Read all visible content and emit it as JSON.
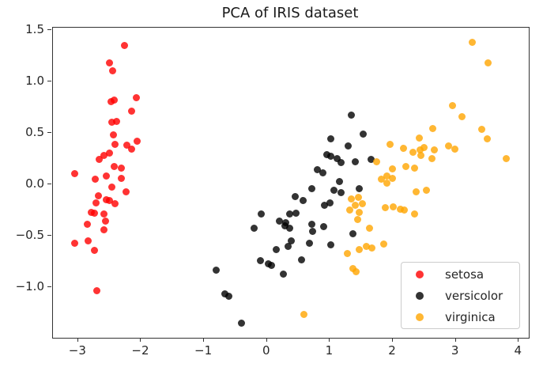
{
  "title": "PCA of IRIS dataset",
  "legend": {
    "position": "lower right",
    "items": [
      {
        "label": "setosa",
        "color": "rgba(255,0,0,0.8)"
      },
      {
        "label": "versicolor",
        "color": "rgba(0,0,0,0.8)"
      },
      {
        "label": "virginica",
        "color": "rgba(255,165,0,0.8)"
      }
    ]
  },
  "chart_data": {
    "type": "scatter",
    "title": "PCA of IRIS dataset",
    "xlabel": "",
    "ylabel": "",
    "grid": false,
    "legend_position": "lower right",
    "xlim": [
      -3.4,
      4.16
    ],
    "ylim": [
      -1.49,
      1.52
    ],
    "xticks": [
      -3,
      -2,
      -1,
      0,
      1,
      2,
      3,
      4
    ],
    "xtick_labels": [
      "−3",
      "−2",
      "−1",
      "0",
      "1",
      "2",
      "3",
      "4"
    ],
    "yticks": [
      1.5,
      1.0,
      0.5,
      0.0,
      -0.5,
      -1.0
    ],
    "ytick_labels": [
      "1.5",
      "1.0",
      "0.5",
      "0.0",
      "−0.5",
      "−1.0"
    ],
    "marker_alpha": 0.8,
    "marker_size_px": 9,
    "series": [
      {
        "name": "setosa",
        "color": "rgba(255,0,0,0.8)",
        "points": [
          [
            -2.26,
            1.35
          ],
          [
            -2.5,
            1.18
          ],
          [
            -2.45,
            1.1
          ],
          [
            -2.48,
            0.8
          ],
          [
            -2.43,
            0.82
          ],
          [
            -2.07,
            0.84
          ],
          [
            -2.15,
            0.71
          ],
          [
            -2.47,
            0.6
          ],
          [
            -2.39,
            0.61
          ],
          [
            -2.44,
            0.48
          ],
          [
            -2.41,
            0.39
          ],
          [
            -2.22,
            0.38
          ],
          [
            -2.06,
            0.42
          ],
          [
            -2.15,
            0.34
          ],
          [
            -2.59,
            0.28
          ],
          [
            -2.5,
            0.3
          ],
          [
            -2.66,
            0.24
          ],
          [
            -2.43,
            0.17
          ],
          [
            -2.31,
            0.16
          ],
          [
            -3.06,
            0.1
          ],
          [
            -2.73,
            0.05
          ],
          [
            -2.55,
            0.08
          ],
          [
            -2.32,
            0.06
          ],
          [
            -2.47,
            -0.03
          ],
          [
            -2.24,
            -0.07
          ],
          [
            -2.68,
            -0.11
          ],
          [
            -2.55,
            -0.15
          ],
          [
            -2.5,
            -0.16
          ],
          [
            -2.71,
            -0.18
          ],
          [
            -2.42,
            -0.19
          ],
          [
            -2.79,
            -0.27
          ],
          [
            -2.74,
            -0.28
          ],
          [
            -2.59,
            -0.29
          ],
          [
            -2.57,
            -0.36
          ],
          [
            -2.85,
            -0.39
          ],
          [
            -2.59,
            -0.44
          ],
          [
            -3.06,
            -0.57
          ],
          [
            -2.84,
            -0.55
          ],
          [
            -2.74,
            -0.64
          ],
          [
            -2.7,
            -1.03
          ]
        ]
      },
      {
        "name": "versicolor",
        "color": "rgba(0,0,0,0.8)",
        "points": [
          [
            1.34,
            0.67
          ],
          [
            1.53,
            0.49
          ],
          [
            1.01,
            0.44
          ],
          [
            1.29,
            0.37
          ],
          [
            0.95,
            0.29
          ],
          [
            1.01,
            0.27
          ],
          [
            1.12,
            0.25
          ],
          [
            1.18,
            0.21
          ],
          [
            1.4,
            0.22
          ],
          [
            1.65,
            0.24
          ],
          [
            0.8,
            0.14
          ],
          [
            0.89,
            0.11
          ],
          [
            1.15,
            0.03
          ],
          [
            0.71,
            -0.04
          ],
          [
            0.45,
            -0.12
          ],
          [
            0.58,
            -0.16
          ],
          [
            1.06,
            -0.06
          ],
          [
            1.18,
            -0.08
          ],
          [
            1.46,
            -0.04
          ],
          [
            1.0,
            -0.18
          ],
          [
            0.91,
            -0.2
          ],
          [
            -0.09,
            -0.29
          ],
          [
            0.36,
            -0.29
          ],
          [
            0.46,
            -0.28
          ],
          [
            0.2,
            -0.36
          ],
          [
            0.3,
            -0.37
          ],
          [
            -0.21,
            -0.43
          ],
          [
            0.28,
            -0.4
          ],
          [
            0.36,
            -0.43
          ],
          [
            0.71,
            -0.39
          ],
          [
            0.72,
            -0.46
          ],
          [
            0.9,
            -0.41
          ],
          [
            0.68,
            -0.57
          ],
          [
            0.38,
            -0.55
          ],
          [
            0.33,
            -0.6
          ],
          [
            0.15,
            -0.63
          ],
          [
            1.01,
            -0.59
          ],
          [
            1.37,
            -0.48
          ],
          [
            0.55,
            -0.73
          ],
          [
            -0.1,
            -0.74
          ],
          [
            0.02,
            -0.77
          ],
          [
            0.07,
            -0.79
          ],
          [
            0.26,
            -0.87
          ],
          [
            -0.81,
            -0.83
          ],
          [
            -0.67,
            -1.06
          ],
          [
            -0.61,
            -1.09
          ],
          [
            -0.4,
            -1.35
          ]
        ]
      },
      {
        "name": "virginica",
        "color": "rgba(255,165,0,0.8)",
        "points": [
          [
            3.26,
            1.38
          ],
          [
            3.51,
            1.18
          ],
          [
            2.95,
            0.76
          ],
          [
            3.1,
            0.66
          ],
          [
            2.64,
            0.54
          ],
          [
            3.41,
            0.53
          ],
          [
            3.5,
            0.44
          ],
          [
            2.42,
            0.45
          ],
          [
            1.96,
            0.39
          ],
          [
            2.17,
            0.35
          ],
          [
            2.32,
            0.31
          ],
          [
            2.43,
            0.33
          ],
          [
            2.5,
            0.36
          ],
          [
            2.66,
            0.33
          ],
          [
            2.62,
            0.25
          ],
          [
            2.89,
            0.37
          ],
          [
            2.98,
            0.34
          ],
          [
            2.45,
            0.28
          ],
          [
            1.74,
            0.22
          ],
          [
            3.8,
            0.25
          ],
          [
            2.21,
            0.17
          ],
          [
            2.34,
            0.16
          ],
          [
            1.99,
            0.15
          ],
          [
            1.91,
            0.08
          ],
          [
            1.99,
            0.06
          ],
          [
            1.91,
            0.01
          ],
          [
            1.82,
            0.05
          ],
          [
            2.37,
            -0.07
          ],
          [
            2.53,
            -0.06
          ],
          [
            1.34,
            -0.14
          ],
          [
            1.45,
            -0.13
          ],
          [
            1.4,
            -0.2
          ],
          [
            1.52,
            -0.19
          ],
          [
            1.31,
            -0.25
          ],
          [
            1.47,
            -0.27
          ],
          [
            1.88,
            -0.23
          ],
          [
            2.01,
            -0.22
          ],
          [
            2.12,
            -0.24
          ],
          [
            2.18,
            -0.25
          ],
          [
            2.34,
            -0.29
          ],
          [
            1.44,
            -0.34
          ],
          [
            1.63,
            -0.43
          ],
          [
            1.28,
            -0.67
          ],
          [
            1.46,
            -0.63
          ],
          [
            1.58,
            -0.6
          ],
          [
            1.67,
            -0.62
          ],
          [
            1.85,
            -0.58
          ],
          [
            1.36,
            -0.82
          ],
          [
            1.42,
            -0.85
          ],
          [
            0.59,
            -1.26
          ]
        ]
      }
    ]
  }
}
